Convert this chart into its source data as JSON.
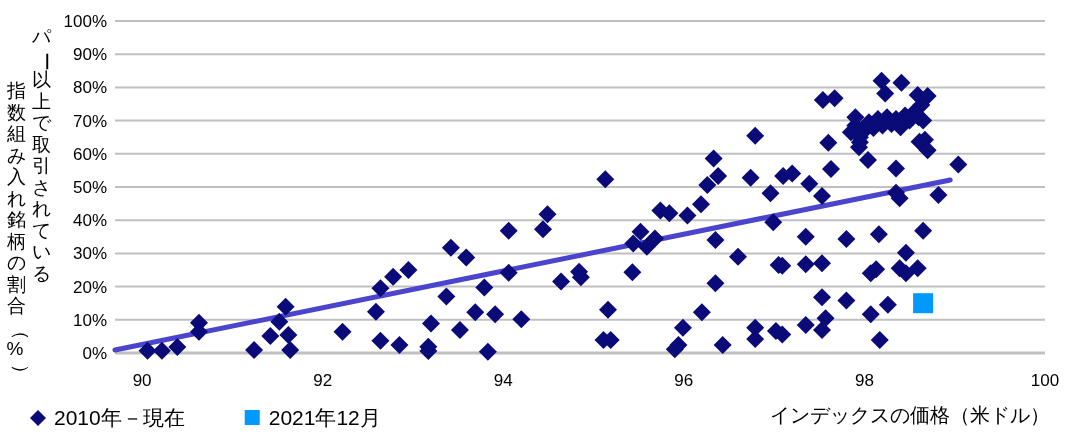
{
  "chart_data": {
    "type": "scatter",
    "xlabel": "インデックスの価格（米ドル）",
    "ylabel": "パー以上で取引されている指数組み入れ銘柄の割合（%）",
    "xlim": [
      89.7,
      100
    ],
    "xticks": [
      90,
      92,
      94,
      96,
      98,
      100
    ],
    "ylim": [
      0,
      100
    ],
    "yticks": [
      {
        "value": 0,
        "label": "0%"
      },
      {
        "value": 10,
        "label": "10%"
      },
      {
        "value": 20,
        "label": "20%"
      },
      {
        "value": 30,
        "label": "30%"
      },
      {
        "value": 40,
        "label": "40%"
      },
      {
        "value": 50,
        "label": "50%"
      },
      {
        "value": 60,
        "label": "60%"
      },
      {
        "value": 70,
        "label": "70%"
      },
      {
        "value": 80,
        "label": "80%"
      },
      {
        "value": 90,
        "label": "90%"
      },
      {
        "value": 100,
        "label": "100%"
      }
    ],
    "grid": "y",
    "legend": "bottom left",
    "series": [
      {
        "name": "2010年－現在",
        "color": "#0a0a78",
        "marker": "diamond",
        "x": [
          90.06,
          90.22,
          90.39,
          90.63,
          90.63,
          91.24,
          91.42,
          91.59,
          91.52,
          91.62,
          91.64,
          92.22,
          92.64,
          92.59,
          92.78,
          92.95,
          92.64,
          92.85,
          93.42,
          93.59,
          93.37,
          93.2,
          93.17,
          93.17,
          93.52,
          93.69,
          93.79,
          93.91,
          93.83,
          94.06,
          94.06,
          94.2,
          94.44,
          94.49,
          94.64,
          94.84,
          94.86,
          95.13,
          95.16,
          95.11,
          95.19,
          95.43,
          95.52,
          95.44,
          95.59,
          95.68,
          95.74,
          95.84,
          96.04,
          95.9,
          95.94,
          95.99,
          96.19,
          96.26,
          96.38,
          96.33,
          96.35,
          96.35,
          96.2,
          96.43,
          96.6,
          96.79,
          96.74,
          96.96,
          96.99,
          96.79,
          96.79,
          97.02,
          97.09,
          97.05,
          97.09,
          97.1,
          97.2,
          97.39,
          97.35,
          97.35,
          97.35,
          97.53,
          97.54,
          97.67,
          97.6,
          97.63,
          97.8,
          97.53,
          97.53,
          97.8,
          97.57,
          97.53,
          98.16,
          98.07,
          98.13,
          98.07,
          98.26,
          98.17,
          98.46,
          98.39,
          98.46,
          98.59,
          98.65,
          98.39,
          98.35,
          98.35,
          98.04,
          97.94,
          98.82,
          99.04,
          98.19,
          98.41,
          98.23,
          98.59,
          98.7,
          98.63,
          98.67,
          98.61,
          98.7,
          97.85,
          97.9,
          97.95,
          98.0,
          98.05,
          98.1,
          98.15,
          98.2,
          98.25,
          98.3,
          98.35,
          98.4,
          98.45,
          98.5,
          98.55,
          98.6,
          97.95,
          97.9,
          98.65
        ],
        "values": [
          0.7,
          0.7,
          1.8,
          9.1,
          6.4,
          0.9,
          5.1,
          13.9,
          9.4,
          5.4,
          0.9,
          6.4,
          19.5,
          12.4,
          23,
          25,
          3.7,
          2.4,
          31.7,
          28.8,
          17,
          8.9,
          1.9,
          0.6,
          6.9,
          12.3,
          19.7,
          11.7,
          0.4,
          36.8,
          24.2,
          10.2,
          37.3,
          41.8,
          21.5,
          24.5,
          22.8,
          52.3,
          13,
          3.9,
          3.9,
          24.3,
          36.5,
          33,
          32,
          34.5,
          42.9,
          42.1,
          41.4,
          1.1,
          2.4,
          7.6,
          44.8,
          50.6,
          53.3,
          58.6,
          34,
          21,
          12.3,
          2.4,
          29,
          65.4,
          52.8,
          48.1,
          39.4,
          7.6,
          4.2,
          6.6,
          5.6,
          26.5,
          26.3,
          53.3,
          54.1,
          51,
          35,
          26.7,
          8.4,
          47.3,
          76.2,
          76.7,
          63.3,
          55.4,
          34.3,
          27,
          16.8,
          15.8,
          10.5,
          6.9,
          35.8,
          24,
          25.2,
          11.7,
          14.5,
          3.9,
          30.2,
          25.5,
          24,
          25.5,
          36.8,
          46.6,
          48.3,
          55.6,
          58.1,
          62,
          47.6,
          56.8,
          82,
          81.4,
          78.2,
          77.7,
          77.4,
          74.7,
          64.2,
          63.6,
          61.1,
          66.5,
          68.5,
          65,
          67,
          69.5,
          67.8,
          70.5,
          68.5,
          71,
          69,
          70.5,
          68,
          71.5,
          70,
          72.5,
          71,
          63.5,
          71,
          70
        ]
      },
      {
        "name": "2021年12月",
        "color": "#0099ff",
        "marker": "square",
        "x": [
          98.65
        ],
        "values": [
          15
        ]
      },
      {
        "type": "line",
        "color": "#4b44cc",
        "marker": "none",
        "x": [
          89.7,
          98.95
        ],
        "values": [
          0.9,
          52.1
        ]
      }
    ]
  }
}
